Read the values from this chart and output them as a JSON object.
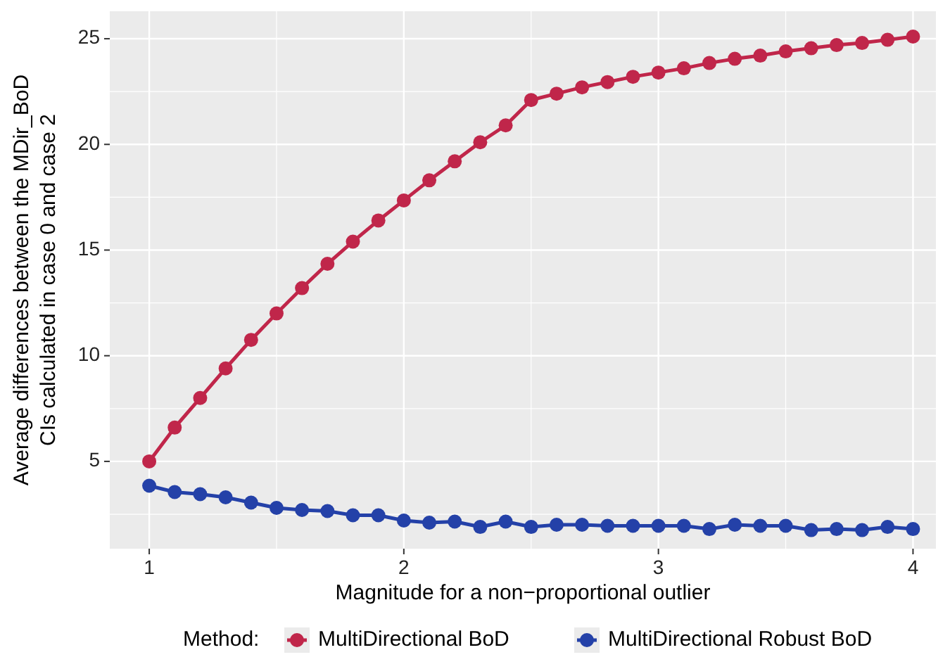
{
  "chart_data": {
    "type": "line",
    "xlabel": "Magnitude for a non−proportional outlier",
    "ylabel": "Average differences between the MDir_BoD\nCIs calculated in case 0 and case 2",
    "legend_title": "Method:",
    "x": [
      1,
      1.1,
      1.2,
      1.3,
      1.4,
      1.5,
      1.6,
      1.7,
      1.8,
      1.9,
      2,
      2.1,
      2.2,
      2.3,
      2.4,
      2.5,
      2.6,
      2.7,
      2.8,
      2.9,
      3,
      3.1,
      3.2,
      3.3,
      3.4,
      3.5,
      3.6,
      3.7,
      3.8,
      3.9,
      4
    ],
    "series": [
      {
        "name": "MultiDirectional BoD",
        "color": "#c0264a",
        "values": [
          5.0,
          6.6,
          8.0,
          9.4,
          10.75,
          12.0,
          13.2,
          14.35,
          15.4,
          16.4,
          17.35,
          18.3,
          19.2,
          20.1,
          20.9,
          22.1,
          22.4,
          22.7,
          22.95,
          23.2,
          23.4,
          23.6,
          23.85,
          24.05,
          24.2,
          24.4,
          24.55,
          24.7,
          24.8,
          24.95,
          25.1
        ]
      },
      {
        "name": "MultiDirectional Robust BoD",
        "color": "#2441a8",
        "values": [
          3.85,
          3.55,
          3.45,
          3.3,
          3.05,
          2.8,
          2.7,
          2.65,
          2.45,
          2.45,
          2.2,
          2.1,
          2.15,
          1.9,
          2.15,
          1.9,
          2.0,
          2.0,
          1.95,
          1.95,
          1.95,
          1.95,
          1.8,
          2.0,
          1.95,
          1.95,
          1.75,
          1.8,
          1.75,
          1.9,
          1.8
        ]
      }
    ],
    "xlim": [
      0.845,
      4.09
    ],
    "xticks": [
      1,
      2,
      3,
      4
    ],
    "ylim": [
      0.87,
      26.3
    ],
    "yticks": [
      5,
      10,
      15,
      20,
      25
    ],
    "grid": true,
    "legend": "bottom",
    "marker": "circle",
    "line_style": "solid"
  }
}
